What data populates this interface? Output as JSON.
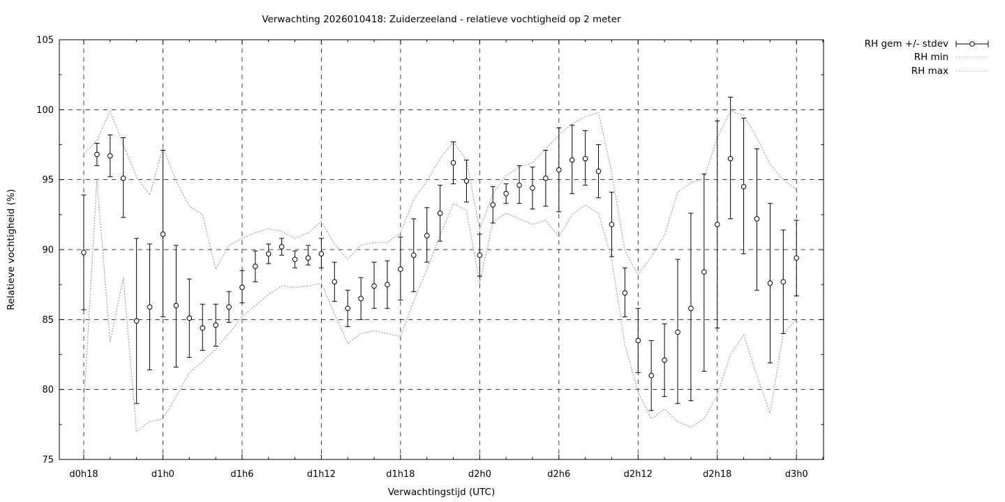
{
  "chart_data": {
    "type": "errorbar-line",
    "title": "Verwachting 2026010418: Zuiderzeeland - relatieve vochtigheid op 2 meter",
    "xlabel": "Verwachtingstijd (UTC)",
    "ylabel": "Relatieve vochtigheid (%)",
    "ylim": [
      75,
      105
    ],
    "yticks": [
      75,
      80,
      85,
      90,
      95,
      100,
      105
    ],
    "ytick_minor_step": 2.5,
    "xlim_hours": [
      -1.85,
      56.05
    ],
    "xticks": [
      {
        "hour": 0,
        "label": "d0h18"
      },
      {
        "hour": 6,
        "label": "d1h0"
      },
      {
        "hour": 12,
        "label": "d1h6"
      },
      {
        "hour": 18,
        "label": "d1h12"
      },
      {
        "hour": 24,
        "label": "d1h18"
      },
      {
        "hour": 30,
        "label": "d2h0"
      },
      {
        "hour": 36,
        "label": "d2h6"
      },
      {
        "hour": 42,
        "label": "d2h12"
      },
      {
        "hour": 48,
        "label": "d2h18"
      },
      {
        "hour": 54,
        "label": "d3h0"
      }
    ],
    "xtick_minor_step_hours": 2,
    "grid": true,
    "legend": {
      "position": "outside-top-right",
      "entries": [
        {
          "label": "RH gem +/- stdev",
          "style": "errorbar"
        },
        {
          "label": "RH min",
          "style": "dotted"
        },
        {
          "label": "RH max",
          "style": "dotted"
        }
      ]
    },
    "series_mean": {
      "name": "RH gem +/- stdev",
      "hours": [
        0,
        1,
        2,
        3,
        4,
        5,
        6,
        7,
        8,
        9,
        10,
        11,
        12,
        13,
        14,
        15,
        16,
        17,
        18,
        19,
        20,
        21,
        22,
        23,
        24,
        25,
        26,
        27,
        28,
        29,
        30,
        31,
        32,
        33,
        34,
        35,
        36,
        37,
        38,
        39,
        40,
        41,
        42,
        43,
        44,
        45,
        46,
        47,
        48,
        49,
        50,
        51,
        52,
        53,
        54
      ],
      "mean": [
        89.8,
        96.8,
        96.7,
        95.1,
        84.9,
        85.9,
        91.1,
        86.0,
        85.1,
        84.4,
        84.6,
        85.9,
        87.3,
        88.8,
        89.7,
        90.2,
        89.3,
        89.4,
        89.7,
        87.7,
        85.8,
        86.5,
        87.4,
        87.5,
        88.6,
        89.6,
        91.0,
        92.6,
        96.2,
        94.9,
        89.6,
        93.2,
        94.0,
        94.6,
        94.4,
        95.1,
        95.7,
        96.4,
        96.5,
        95.6,
        91.8,
        86.9,
        83.5,
        81.0,
        82.1,
        84.1,
        85.8,
        88.4,
        91.8,
        96.5,
        94.5,
        92.2,
        87.6,
        87.7,
        89.4
      ],
      "lo": [
        85.7,
        96.0,
        95.2,
        92.3,
        79.0,
        81.4,
        85.2,
        81.6,
        82.3,
        82.8,
        83.1,
        84.8,
        86.2,
        87.7,
        89.0,
        89.6,
        88.7,
        88.9,
        88.7,
        86.3,
        84.5,
        85.0,
        85.8,
        85.8,
        86.4,
        87.0,
        89.1,
        90.6,
        94.7,
        93.4,
        88.1,
        91.9,
        93.3,
        93.3,
        92.9,
        93.1,
        92.7,
        94.0,
        94.6,
        93.7,
        89.5,
        85.2,
        81.2,
        78.5,
        79.5,
        79.0,
        79.2,
        81.3,
        84.4,
        92.2,
        89.7,
        87.1,
        81.9,
        84.0,
        86.7
      ],
      "hi": [
        93.9,
        97.6,
        98.2,
        98.0,
        90.8,
        90.4,
        97.1,
        90.3,
        87.9,
        86.1,
        86.1,
        87.0,
        88.5,
        89.9,
        90.4,
        90.8,
        89.9,
        90.3,
        90.8,
        89.1,
        87.1,
        88.0,
        89.1,
        89.2,
        90.9,
        92.2,
        93.0,
        94.6,
        97.7,
        96.4,
        91.1,
        94.5,
        94.7,
        96.0,
        95.9,
        97.1,
        98.7,
        98.9,
        98.5,
        97.5,
        94.1,
        88.7,
        85.8,
        83.5,
        84.7,
        89.3,
        92.6,
        95.4,
        99.2,
        100.9,
        99.4,
        97.2,
        93.3,
        91.4,
        92.1
      ]
    },
    "series_min": {
      "name": "RH min",
      "values": [
        78.8,
        95.0,
        83.4,
        88.0,
        77.0,
        77.7,
        77.9,
        79.5,
        81.2,
        82.0,
        82.9,
        84.0,
        85.2,
        86.0,
        86.8,
        87.4,
        87.3,
        87.4,
        87.6,
        85.4,
        83.3,
        84.0,
        84.2,
        84.0,
        83.8,
        86.3,
        88.6,
        91.0,
        93.3,
        92.8,
        87.6,
        92.0,
        92.6,
        92.2,
        91.8,
        92.1,
        90.9,
        92.5,
        93.2,
        92.6,
        89.3,
        83.2,
        79.8,
        77.9,
        78.6,
        77.7,
        77.3,
        77.9,
        79.6,
        82.5,
        83.9,
        81.0,
        78.3,
        84.0,
        85.0
      ]
    },
    "series_max": {
      "name": "RH max",
      "values": [
        96.8,
        97.8,
        99.9,
        97.5,
        95.2,
        93.9,
        97.3,
        94.9,
        93.1,
        92.5,
        88.6,
        90.3,
        90.8,
        91.2,
        91.5,
        91.3,
        90.8,
        91.2,
        92.0,
        90.4,
        89.3,
        90.3,
        90.5,
        90.5,
        91.2,
        93.6,
        94.9,
        96.5,
        97.7,
        96.4,
        91.4,
        94.0,
        95.3,
        95.9,
        96.2,
        97.2,
        98.2,
        99.0,
        99.5,
        99.8,
        95.5,
        89.9,
        88.2,
        89.5,
        91.0,
        94.1,
        94.8,
        95.1,
        98.0,
        99.9,
        99.6,
        98.0,
        96.1,
        95.0,
        94.3
      ]
    },
    "colors": {
      "foreground": "#000000",
      "band_line": "#ababab",
      "background": "#ffffff",
      "marker_fill": "#ffffff"
    }
  }
}
